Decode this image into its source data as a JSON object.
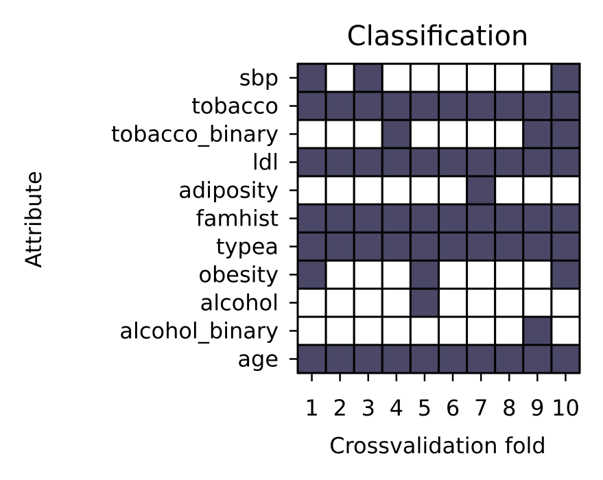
{
  "chart_data": {
    "type": "heatmap",
    "title": "Classification",
    "xlabel": "Crossvalidation fold",
    "ylabel": "Attribute",
    "x": [
      "1",
      "2",
      "3",
      "4",
      "5",
      "6",
      "7",
      "8",
      "9",
      "10"
    ],
    "y": [
      "sbp",
      "tobacco",
      "tobacco_binary",
      "ldl",
      "adiposity",
      "famhist",
      "typea",
      "obesity",
      "alcohol",
      "alcohol_binary",
      "age"
    ],
    "values": [
      [
        1,
        0,
        1,
        0,
        0,
        0,
        0,
        0,
        0,
        1
      ],
      [
        1,
        1,
        1,
        1,
        1,
        1,
        1,
        1,
        1,
        1
      ],
      [
        0,
        0,
        0,
        1,
        0,
        0,
        0,
        0,
        1,
        1
      ],
      [
        1,
        1,
        1,
        1,
        1,
        1,
        1,
        1,
        1,
        1
      ],
      [
        0,
        0,
        0,
        0,
        0,
        0,
        1,
        0,
        0,
        0
      ],
      [
        1,
        1,
        1,
        1,
        1,
        1,
        1,
        1,
        1,
        1
      ],
      [
        1,
        1,
        1,
        1,
        1,
        1,
        1,
        1,
        1,
        1
      ],
      [
        1,
        0,
        0,
        0,
        1,
        0,
        0,
        0,
        0,
        1
      ],
      [
        0,
        0,
        0,
        0,
        1,
        0,
        0,
        0,
        0,
        0
      ],
      [
        0,
        0,
        0,
        0,
        0,
        0,
        0,
        0,
        1,
        0
      ],
      [
        1,
        1,
        1,
        1,
        1,
        1,
        1,
        1,
        1,
        1
      ]
    ],
    "colors": {
      "selected": "#4a4866",
      "unselected": "#ffffff",
      "edge": "#000000"
    },
    "grid": false,
    "legend": "none"
  }
}
